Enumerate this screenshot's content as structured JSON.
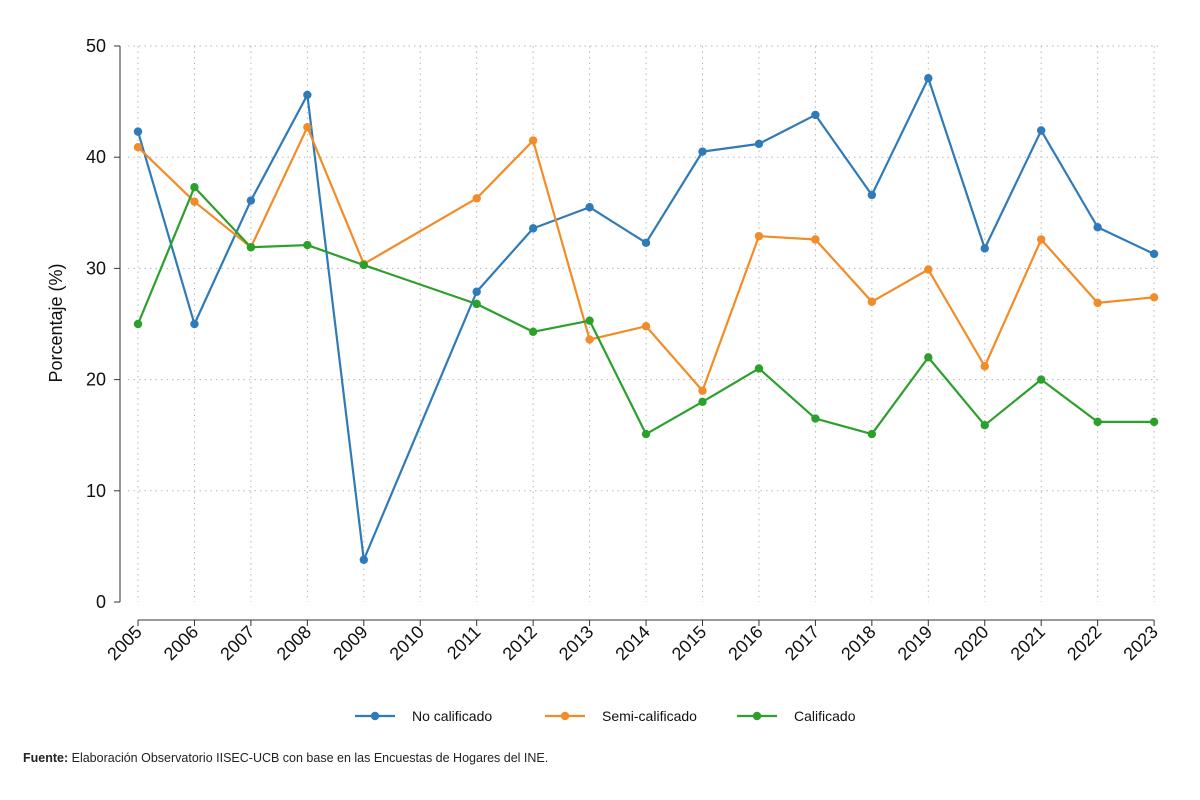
{
  "chart_data": {
    "type": "line",
    "title": "",
    "xlabel": "",
    "ylabel": "Porcentaje (%)",
    "ylim": [
      0,
      50
    ],
    "yticks": [
      0,
      10,
      20,
      30,
      40,
      50
    ],
    "grid": true,
    "legend_position": "bottom",
    "categories": [
      "2005",
      "2006",
      "2007",
      "2008",
      "2009",
      "2010",
      "2011",
      "2012",
      "2013",
      "2014",
      "2015",
      "2016",
      "2017",
      "2018",
      "2019",
      "2020",
      "2021",
      "2022",
      "2023"
    ],
    "series": [
      {
        "name": "No calificado",
        "color": "#2f7ab8",
        "values": [
          42.3,
          25.0,
          36.1,
          45.6,
          3.8,
          null,
          27.9,
          33.6,
          35.5,
          32.3,
          40.5,
          41.2,
          43.8,
          36.6,
          47.1,
          31.8,
          42.4,
          33.7,
          31.3
        ]
      },
      {
        "name": "Semi-calificado",
        "color": "#f28c28",
        "values": [
          40.9,
          36.0,
          31.9,
          42.7,
          30.4,
          null,
          36.3,
          41.5,
          23.6,
          24.8,
          19.0,
          32.9,
          32.6,
          27.0,
          29.9,
          21.2,
          32.6,
          26.9,
          27.4
        ]
      },
      {
        "name": "Calificado",
        "color": "#2ca02c",
        "values": [
          25.0,
          37.3,
          31.9,
          32.1,
          30.3,
          null,
          26.8,
          24.3,
          25.3,
          15.1,
          18.0,
          21.0,
          16.5,
          15.1,
          22.0,
          15.9,
          20.0,
          16.2,
          16.2
        ]
      }
    ]
  },
  "source": {
    "label": "Fuente:",
    "text": " Elaboración Observatorio IISEC-UCB con base en las Encuestas de Hogares del INE."
  }
}
